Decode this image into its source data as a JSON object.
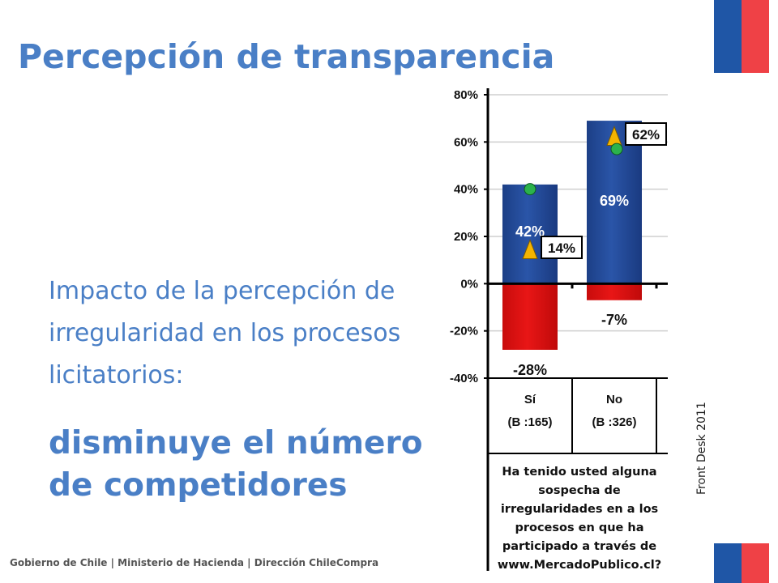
{
  "slide": {
    "title": "Percepción de transparencia",
    "body": "Impacto de la percepción de irregularidad en los procesos licitatorios:",
    "emphasis": "disminuye el número de competidores",
    "footer": "Gobierno de Chile | Ministerio de Hacienda | Dirección ChileCompra",
    "source": "Front Desk 2011",
    "colors": {
      "text_blue": "#4a7fc6",
      "flag_blue": "#1f56a6",
      "flag_red": "#ef4146"
    }
  },
  "chart_data": {
    "type": "bar",
    "categories": [
      {
        "name": "Sí",
        "base": "(B :165)"
      },
      {
        "name": "No",
        "base": "(B :326)"
      }
    ],
    "positive": {
      "values": [
        42,
        69
      ],
      "labels": [
        "42%",
        "69%"
      ],
      "color": "#2a55a8"
    },
    "negative": {
      "values": [
        -28,
        -7
      ],
      "labels": [
        "-28%",
        "-7%"
      ],
      "color": "#e81616"
    },
    "triangle_markers": {
      "values": [
        14,
        62
      ],
      "labels": [
        "14%",
        "62%"
      ],
      "color": "#f4b400"
    },
    "circle_markers": {
      "values": [
        40,
        57
      ],
      "color": "#2bb24c"
    },
    "ylim": [
      -40,
      80
    ],
    "yticks": [
      80,
      60,
      40,
      20,
      0,
      -20,
      -40
    ],
    "ytick_labels": [
      "80%",
      "60%",
      "40%",
      "20%",
      "0%",
      "-20%",
      "-40%"
    ],
    "grid": true,
    "question": "Ha tenido usted alguna sospecha de irregularidades en a los procesos en que ha participado a través de www.MercadoPublico.cl?"
  }
}
